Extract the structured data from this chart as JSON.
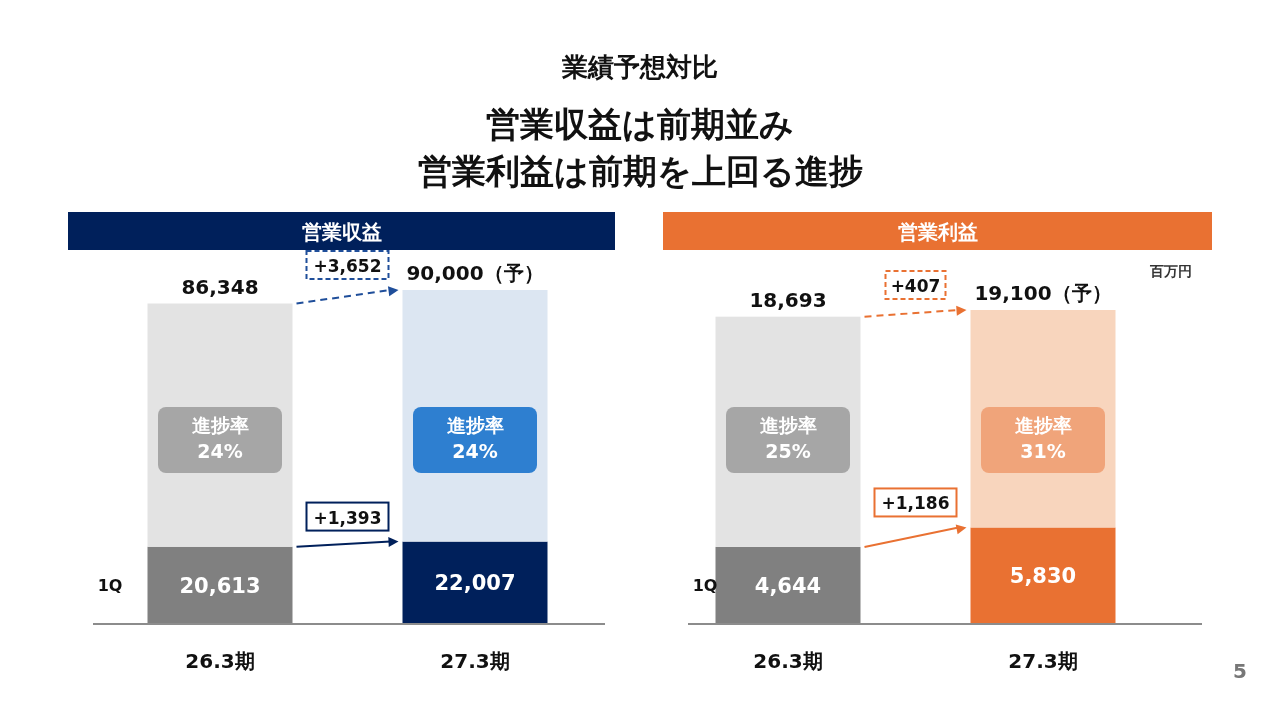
{
  "chart_data": [
    {
      "type": "bar",
      "title": "営業収益",
      "stacked": true,
      "categories": [
        "26.3期",
        "27.3期"
      ],
      "series": [
        {
          "name": "1Q",
          "colors": [
            "#808080",
            "#00205b"
          ],
          "values": [
            20613,
            22007
          ],
          "value_labels": [
            "20,613",
            "22,007"
          ]
        },
        {
          "colors": [
            "#e3e3e3",
            "#dce6f2"
          ],
          "values": [
            65735,
            67993
          ]
        }
      ],
      "totals": [
        "86,348",
        "90,000（予）"
      ],
      "annotations": [
        "業績予想対比",
        "営業収益は前期並み",
        "営業利益は前期を上回る進捗",
        "+3,652",
        "+1,393",
        "進捗率",
        "24%",
        "進捗率",
        "24%"
      ]
    },
    {
      "type": "bar",
      "title": "営業利益",
      "stacked": true,
      "categories": [
        "26.3期",
        "27.3期"
      ],
      "ylabel": "百万円",
      "series": [
        {
          "name": "1Q",
          "colors": [
            "#808080",
            "#e97132"
          ],
          "values": [
            4644,
            5830
          ],
          "value_labels": [
            "4,644",
            "5,830"
          ]
        },
        {
          "colors": [
            "#e3e3e3",
            "#f8d5bd"
          ],
          "values": [
            14049,
            13270
          ]
        }
      ],
      "totals": [
        "18,693",
        "19,100（予）"
      ],
      "annotations": [
        "5",
        "+407",
        "+1,186",
        "進捗率",
        "25%",
        "進捗率",
        "31%"
      ]
    }
  ]
}
